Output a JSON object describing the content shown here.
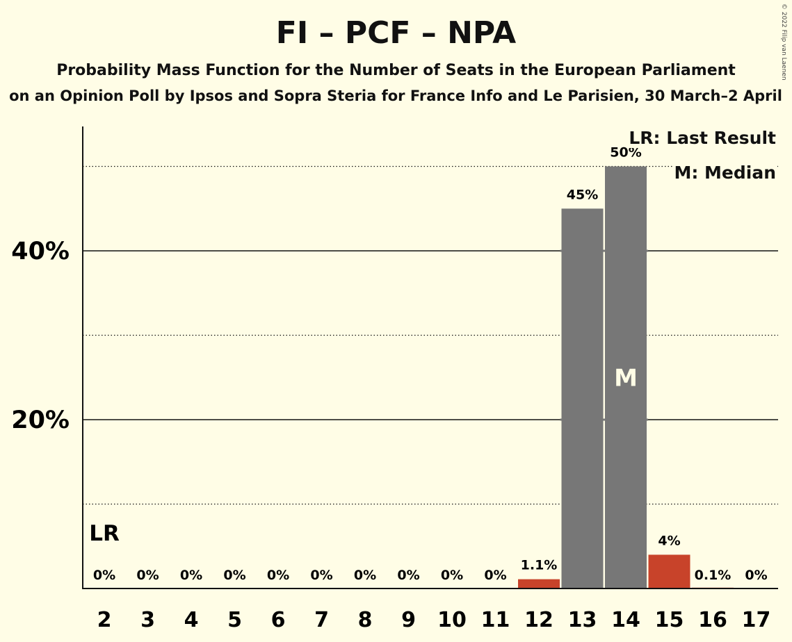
{
  "header": {
    "title": "FI – PCF – NPA",
    "subtitle": "Probability Mass Function for the Number of Seats in the European Parliament",
    "source": "on an Opinion Poll by Ipsos and Sopra Steria for France Info and Le Parisien, 30 March–2 April",
    "copyright": "© 2022 Filip van Laenen"
  },
  "legend": {
    "last_result": "LR: Last Result",
    "median": "M: Median"
  },
  "chart_data": {
    "type": "bar",
    "title": "FI – PCF – NPA",
    "subtitle": "Probability Mass Function for the Number of Seats in the European Parliament",
    "categories": [
      "2",
      "3",
      "4",
      "5",
      "6",
      "7",
      "8",
      "9",
      "10",
      "11",
      "12",
      "13",
      "14",
      "15",
      "16",
      "17"
    ],
    "values": [
      0,
      0,
      0,
      0,
      0,
      0,
      0,
      0,
      0,
      0,
      1.1,
      45,
      50,
      4,
      0.1,
      0
    ],
    "value_labels": [
      "0%",
      "0%",
      "0%",
      "0%",
      "0%",
      "0%",
      "0%",
      "0%",
      "0%",
      "0%",
      "1.1%",
      "45%",
      "50%",
      "4%",
      "0.1%",
      "0%"
    ],
    "bar_colors": [
      "#c8432a",
      "#c8432a",
      "#c8432a",
      "#c8432a",
      "#c8432a",
      "#c8432a",
      "#c8432a",
      "#c8432a",
      "#c8432a",
      "#c8432a",
      "#c8432a",
      "#777777",
      "#777777",
      "#c8432a",
      "#c8432a",
      "#c8432a"
    ],
    "ylim": [
      0,
      55
    ],
    "yticks": [
      20,
      40
    ],
    "ytick_labels": [
      "20%",
      "40%"
    ],
    "minor_gridlines": [
      10,
      30,
      50
    ],
    "last_result_seat": "2",
    "last_result_label": "LR",
    "median_seat": "14",
    "median_label": "M",
    "legend_position": "top-right"
  },
  "colors": {
    "background": "#fffde6",
    "in_range_bar": "#777777",
    "out_range_bar": "#c8432a",
    "text": "#111111"
  }
}
